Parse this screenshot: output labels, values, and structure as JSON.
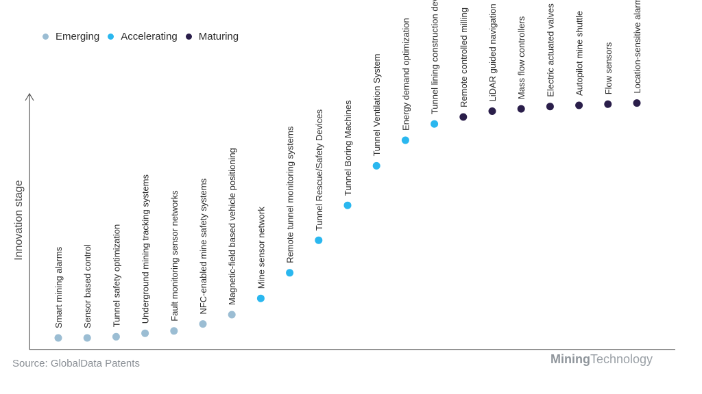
{
  "chart_data": {
    "type": "scatter",
    "title": "",
    "xlabel": "",
    "ylabel": "Innovation stage",
    "legend_position": "top-left",
    "categories": [
      "Smart mining alarms",
      "Sensor based control",
      "Tunnel safety optimization",
      "Underground mining tracking systems",
      "Fault monitoring sensor networks",
      "NFC-enabled mine safety systems",
      "Magnetic-field based vehicle positioning",
      "Mine sensor network",
      "Remote tunnel monitoring systems",
      "Tunnel Rescue/Safety Devices",
      "Tunnel Boring Machines",
      "Tunnel Ventilation System",
      "Energy demand optimization",
      "Tunnel lining construction devices",
      "Remote controlled milling",
      "LiDAR guided navigation",
      "Mass flow controllers",
      "Electric actuated valves",
      "Autopilot mine shuttle",
      "Flow sensors",
      "Location-sensitive alarms"
    ],
    "values": [
      5,
      5,
      5.5,
      7,
      8,
      11,
      15,
      22,
      33,
      47,
      62,
      79,
      90,
      97,
      100,
      102.5,
      103.5,
      104.5,
      105,
      105.5,
      106
    ],
    "stages": [
      "Emerging",
      "Emerging",
      "Emerging",
      "Emerging",
      "Emerging",
      "Emerging",
      "Emerging",
      "Accelerating",
      "Accelerating",
      "Accelerating",
      "Accelerating",
      "Accelerating",
      "Accelerating",
      "Accelerating",
      "Maturing",
      "Maturing",
      "Maturing",
      "Maturing",
      "Maturing",
      "Maturing",
      "Maturing"
    ],
    "ylim": [
      0,
      110
    ],
    "grid": false,
    "series": [
      {
        "name": "Emerging",
        "color": "#9bbdd3"
      },
      {
        "name": "Accelerating",
        "color": "#2ab7ef"
      },
      {
        "name": "Maturing",
        "color": "#2a1e4a"
      }
    ]
  },
  "source_text": "Source: GlobalData Patents",
  "brand": {
    "bold": "Mining",
    "regular": "Technology"
  }
}
